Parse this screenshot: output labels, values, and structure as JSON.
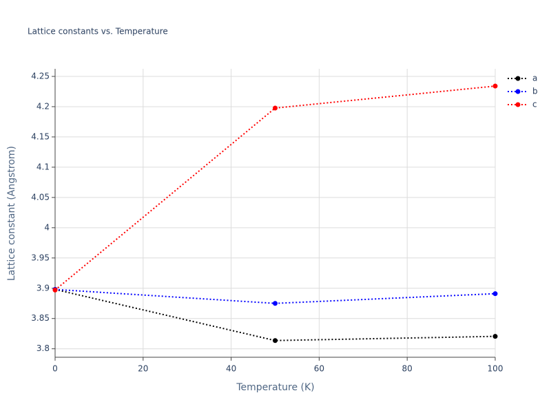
{
  "chart_data": {
    "type": "line",
    "title": "Lattice constants vs. Temperature",
    "x_label": "Temperature (K)",
    "y_label": "Lattice constant (Angstrom)",
    "x": [
      0,
      50,
      100
    ],
    "series": [
      {
        "name": "a",
        "color": "#000000",
        "values": [
          3.898,
          3.8136,
          3.8205
        ]
      },
      {
        "name": "b",
        "color": "#0000ff",
        "values": [
          3.898,
          3.875,
          3.891
        ]
      },
      {
        "name": "c",
        "color": "#ff0000",
        "values": [
          3.897,
          4.1977,
          4.234
        ]
      }
    ],
    "xlim": [
      0,
      100
    ],
    "xticks": [
      0,
      20,
      40,
      60,
      80,
      100
    ],
    "ylim": [
      3.786,
      4.2625
    ],
    "yticks": [
      3.8,
      3.85,
      3.9,
      3.95,
      4,
      4.05,
      4.1,
      4.15,
      4.2,
      4.25
    ],
    "grid": true,
    "legend": "top-right",
    "line_style": "dotted"
  }
}
